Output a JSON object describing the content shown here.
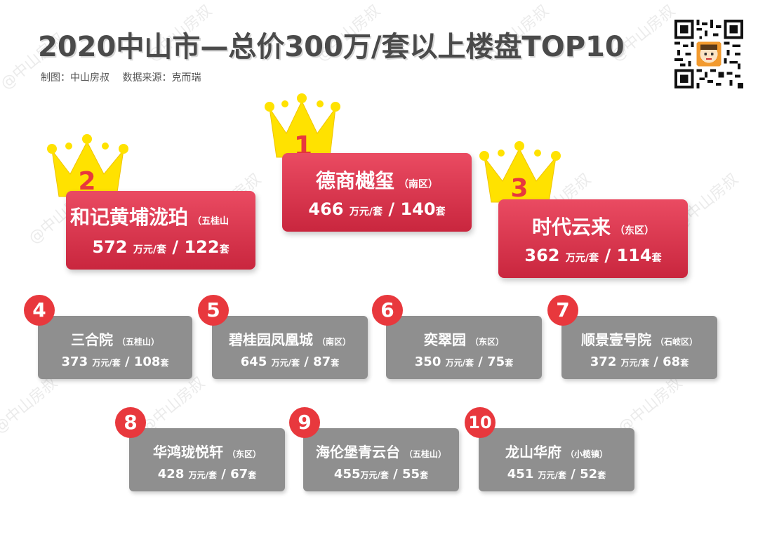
{
  "title": "2020中山市—总价300万/套以上楼盘TOP10",
  "credits": {
    "maker": "制图：中山房叔",
    "source": "数据来源：克而瑞"
  },
  "watermark": "@中山房叔",
  "colors": {
    "top_card": "#d8344c",
    "rank_badge": "#e8383d",
    "gray_card": "#8f8f8f",
    "crown": "#ffe200"
  },
  "top3": [
    {
      "rank": "1",
      "name": "德商樾玺",
      "area": "（南区）",
      "price": "466",
      "unit": "万元/套",
      "count": "140",
      "count_unit": "套"
    },
    {
      "rank": "2",
      "name": "和记黄埔泷珀",
      "area": "（五桂山",
      "price": "572",
      "unit": "万元/套",
      "count": "122",
      "count_unit": "套"
    },
    {
      "rank": "3",
      "name": "时代云来",
      "area": "（东区）",
      "price": "362",
      "unit": "万元/套",
      "count": "114",
      "count_unit": "套"
    }
  ],
  "others": [
    {
      "rank": "4",
      "name": "三合院",
      "area": "（五桂山）",
      "price": "373",
      "unit": "万元/套",
      "count": "108",
      "count_unit": "套"
    },
    {
      "rank": "5",
      "name": "碧桂园凤凰城",
      "area": "（南区）",
      "price": "645",
      "unit": "万元/套",
      "count": "87",
      "count_unit": "套"
    },
    {
      "rank": "6",
      "name": "奕翠园",
      "area": "（东区）",
      "price": "350",
      "unit": "万元/套",
      "count": "75",
      "count_unit": "套"
    },
    {
      "rank": "7",
      "name": "顺景壹号院",
      "area": "（石岐区）",
      "price": "372",
      "unit": "万元/套",
      "count": "68",
      "count_unit": "套"
    },
    {
      "rank": "8",
      "name": "华鸿珑悦轩",
      "area": "（东区）",
      "price": "428",
      "unit": "万元/套",
      "count": "67",
      "count_unit": "套"
    },
    {
      "rank": "9",
      "name": "海伦堡青云台",
      "area": "（五桂山）",
      "price": "455",
      "unit": "万元/套",
      "count": "55",
      "count_unit": "套"
    },
    {
      "rank": "10",
      "name": "龙山华府",
      "area": "（小榄镇）",
      "price": "451",
      "unit": "万元/套",
      "count": "52",
      "count_unit": "套"
    }
  ]
}
